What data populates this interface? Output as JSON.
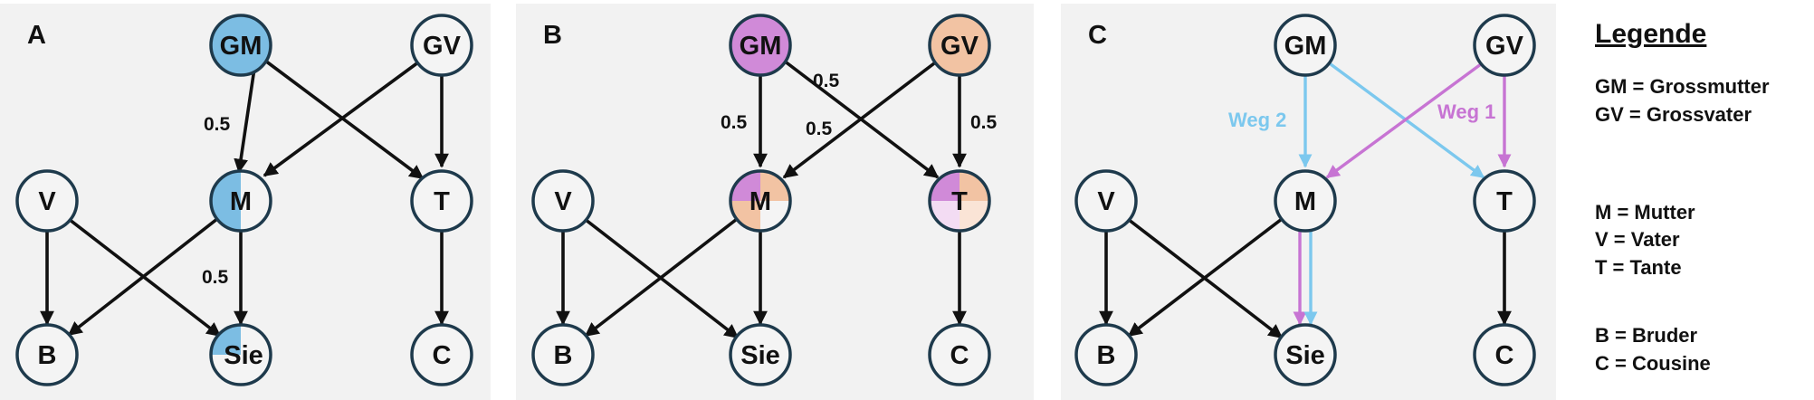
{
  "panels": {
    "a": {
      "letter": "A",
      "edge_labels": [
        "0.5",
        "0.5"
      ]
    },
    "b": {
      "letter": "B",
      "edge_labels": [
        "0.5",
        "0.5",
        "0.5",
        "0.5"
      ]
    },
    "c": {
      "letter": "C",
      "path1": "Weg 1",
      "path2": "Weg 2"
    }
  },
  "nodes": {
    "gm": "GM",
    "gv": "GV",
    "v": "V",
    "m": "M",
    "t": "T",
    "b": "B",
    "sie": "Sie",
    "c": "C"
  },
  "legend": {
    "title": "Legende",
    "items": [
      "GM = Grossmutter",
      "GV = Grossvater",
      "M = Mutter",
      "V = Vater",
      "T = Tante",
      "B = Bruder",
      "C = Cousine"
    ]
  },
  "colors": {
    "blue": "#7cbde3",
    "pink": "#d08ad8",
    "peach": "#f2c3a3",
    "path_blue": "#7cc8ee",
    "path_pink": "#c774d3"
  }
}
